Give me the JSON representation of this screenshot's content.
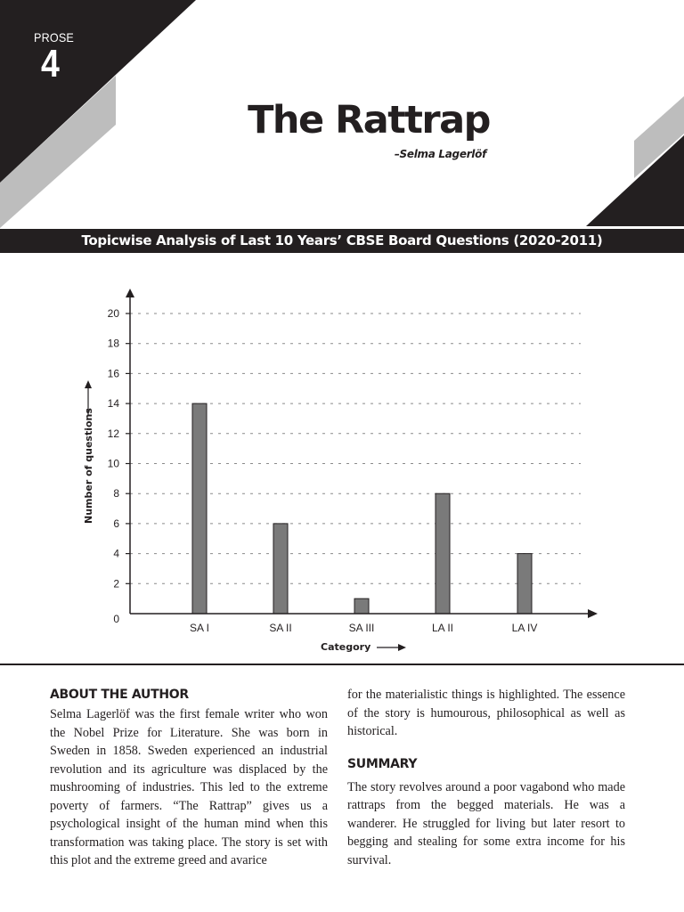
{
  "header": {
    "section_label": "PROSE",
    "chapter_number": "4",
    "title": "The Rattrap",
    "author": "–Selma Lagerlöf",
    "colors": {
      "dark": "#231f20",
      "grey": "#bdbdbd",
      "white": "#ffffff"
    }
  },
  "banner": {
    "text": "Topicwise Analysis of Last 10 Years’ CBSE Board Questions (2020-2011)"
  },
  "chart_data": {
    "type": "bar",
    "title": "Topicwise Analysis of Last 10 Years’ CBSE Board Questions (2020-2011)",
    "categories": [
      "SA I",
      "SA II",
      "SA III",
      "LA II",
      "LA IV"
    ],
    "values": [
      14,
      6,
      1,
      8,
      4
    ],
    "xlabel": "Category",
    "ylabel": "Number of questions",
    "ylim": [
      0,
      20
    ],
    "yticks": [
      0,
      2,
      4,
      6,
      8,
      10,
      12,
      14,
      16,
      18,
      20
    ],
    "grid": "horizontal dotted",
    "bar_color": "#7a7a7a",
    "legend": null
  },
  "chart_labels": {
    "xlabel": "Category",
    "ylabel": "Number of questions",
    "yticks": [
      "0",
      "2",
      "4",
      "6",
      "8",
      "10",
      "12",
      "14",
      "16",
      "18",
      "20"
    ],
    "categories": [
      "SA I",
      "SA II",
      "SA III",
      "LA II",
      "LA IV"
    ]
  },
  "about_author": {
    "heading": "ABOUT THE AUTHOR",
    "text": "Selma Lagerlöf was the first female writer who won the Nobel Prize for Literature. She was born in Sweden in 1858. Sweden experienced an industrial revolution and its agriculture was displaced by the mushrooming of industries. This led to the extreme poverty of farmers. “The Rattrap” gives us a psychological insight of the human mind when this transformation was taking place. The story is set with this plot and the extreme greed and avarice",
    "continuation": "for the materialistic things is highlighted. The essence of the story is humourous, philosophical as well as historical."
  },
  "summary": {
    "heading": "SUMMARY",
    "text": "The story revolves around a poor vagabond who made rattraps from the begged materials. He was a wanderer. He struggled for living but later resort to begging and stealing for some extra income for his survival."
  }
}
